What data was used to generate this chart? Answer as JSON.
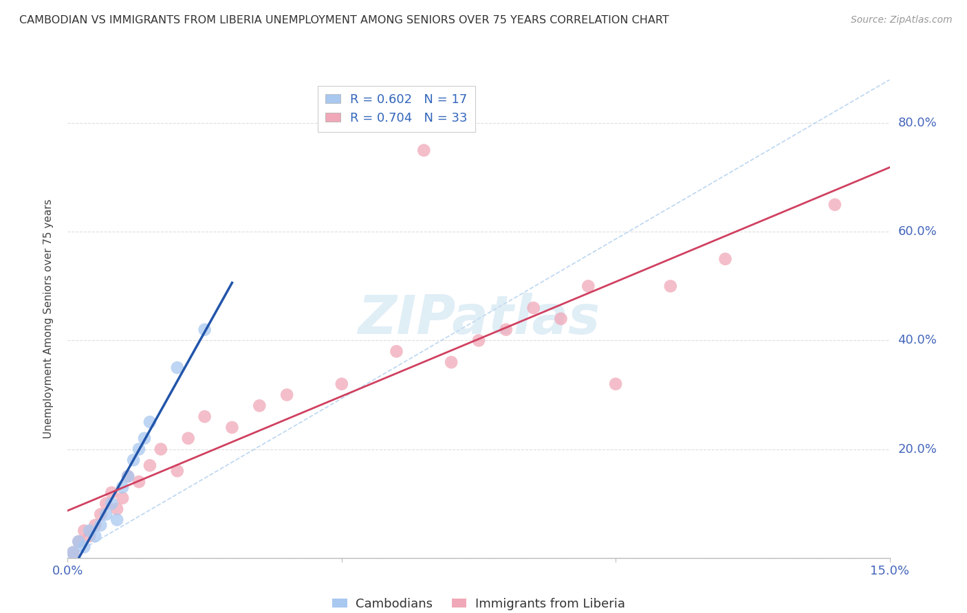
{
  "title": "CAMBODIAN VS IMMIGRANTS FROM LIBERIA UNEMPLOYMENT AMONG SENIORS OVER 75 YEARS CORRELATION CHART",
  "source": "Source: ZipAtlas.com",
  "ylabel": "Unemployment Among Seniors over 75 years",
  "xlim": [
    0.0,
    0.15
  ],
  "ylim": [
    0.0,
    0.88
  ],
  "xticks": [
    0.0,
    0.05,
    0.1,
    0.15
  ],
  "xticklabels": [
    "0.0%",
    "",
    "",
    "15.0%"
  ],
  "yticks": [
    0.0,
    0.2,
    0.4,
    0.6,
    0.8
  ],
  "yticklabels": [
    "",
    "20.0%",
    "40.0%",
    "60.0%",
    "80.0%"
  ],
  "background_color": "#ffffff",
  "grid_color": "#dddddd",
  "watermark_text": "ZIPatlas",
  "legend_r1": "R = 0.602",
  "legend_n1": "N = 17",
  "legend_r2": "R = 0.704",
  "legend_n2": "N = 33",
  "cambodian_color": "#a8c8f0",
  "liberia_color": "#f0a8b8",
  "cambodian_line_color": "#2255aa",
  "liberia_line_color": "#d04060",
  "diag_color": "#aaccee",
  "scatter_cambodian_x": [
    0.001,
    0.002,
    0.003,
    0.004,
    0.005,
    0.006,
    0.007,
    0.008,
    0.009,
    0.01,
    0.011,
    0.012,
    0.013,
    0.014,
    0.015,
    0.02,
    0.025
  ],
  "scatter_cambodian_y": [
    0.01,
    0.03,
    0.02,
    0.05,
    0.04,
    0.06,
    0.08,
    0.1,
    0.07,
    0.13,
    0.15,
    0.18,
    0.2,
    0.22,
    0.25,
    0.35,
    0.42
  ],
  "scatter_liberia_x": [
    0.001,
    0.002,
    0.003,
    0.004,
    0.005,
    0.006,
    0.007,
    0.008,
    0.009,
    0.01,
    0.011,
    0.013,
    0.015,
    0.017,
    0.02,
    0.022,
    0.025,
    0.03,
    0.035,
    0.04,
    0.05,
    0.06,
    0.065,
    0.07,
    0.075,
    0.08,
    0.085,
    0.09,
    0.095,
    0.1,
    0.11,
    0.12,
    0.14
  ],
  "scatter_liberia_y": [
    0.01,
    0.03,
    0.05,
    0.04,
    0.06,
    0.08,
    0.1,
    0.12,
    0.09,
    0.11,
    0.15,
    0.14,
    0.17,
    0.2,
    0.16,
    0.22,
    0.26,
    0.24,
    0.28,
    0.3,
    0.32,
    0.38,
    0.75,
    0.36,
    0.4,
    0.42,
    0.46,
    0.44,
    0.5,
    0.32,
    0.5,
    0.55,
    0.65
  ],
  "camb_line_xrange": [
    0.0,
    0.03
  ],
  "lib_line_xrange": [
    0.0,
    0.15
  ]
}
